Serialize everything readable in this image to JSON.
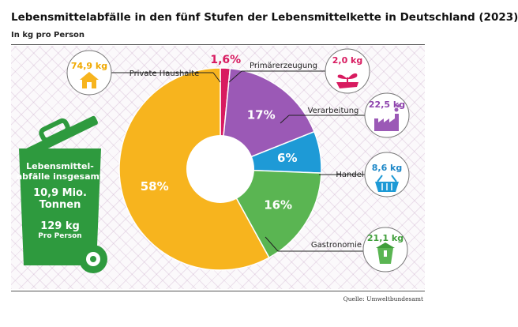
{
  "title": "Lebensmittelabfälle in den fünf Stufen der Lebensmittelkette  in Deutschland (2023)",
  "subtitle": "In kg pro Person",
  "source": "Quelle: Umweltbundesamt",
  "bin": {
    "line1": "Lebensmittel-",
    "line2": "abfälle insgesamt",
    "total_value": "10,9 Mio.",
    "total_unit": "Tonnen",
    "per_person_value": "129 kg",
    "per_person_unit": "Pro Person"
  },
  "colors": {
    "private_households": "#f7b41e",
    "primary_production": "#d81b60",
    "processing": "#9b59b6",
    "trade": "#1e9ad6",
    "gastronomy": "#5ab552",
    "bin": "#2e9a3e"
  },
  "icons": {
    "private_households": "house-icon",
    "primary_production": "sprout-hand-icon",
    "processing": "factory-icon",
    "trade": "shopping-basket-icon",
    "gastronomy": "takeaway-box-icon"
  },
  "chart_data": {
    "type": "pie",
    "title": "Lebensmittelabfälle in den fünf Stufen der Lebensmittelkette  in Deutschland (2023)",
    "subtitle": "In kg pro Person",
    "categories": [
      "Private Haushalte",
      "Primärerzeugung",
      "Verarbeitung",
      "Handel",
      "Gastronomie"
    ],
    "values": [
      74.9,
      2.0,
      22.5,
      8.6,
      21.1
    ],
    "value_labels": [
      "74,9 kg",
      "2,0 kg",
      "22,5 kg",
      "8,6 kg",
      "21,1 kg"
    ],
    "percent_labels": [
      "58%",
      "1,6%",
      "17%",
      "6%",
      "16%"
    ],
    "percent_values": [
      58,
      1.6,
      17,
      6,
      16
    ],
    "unit": "kg pro Person",
    "donut": true
  }
}
